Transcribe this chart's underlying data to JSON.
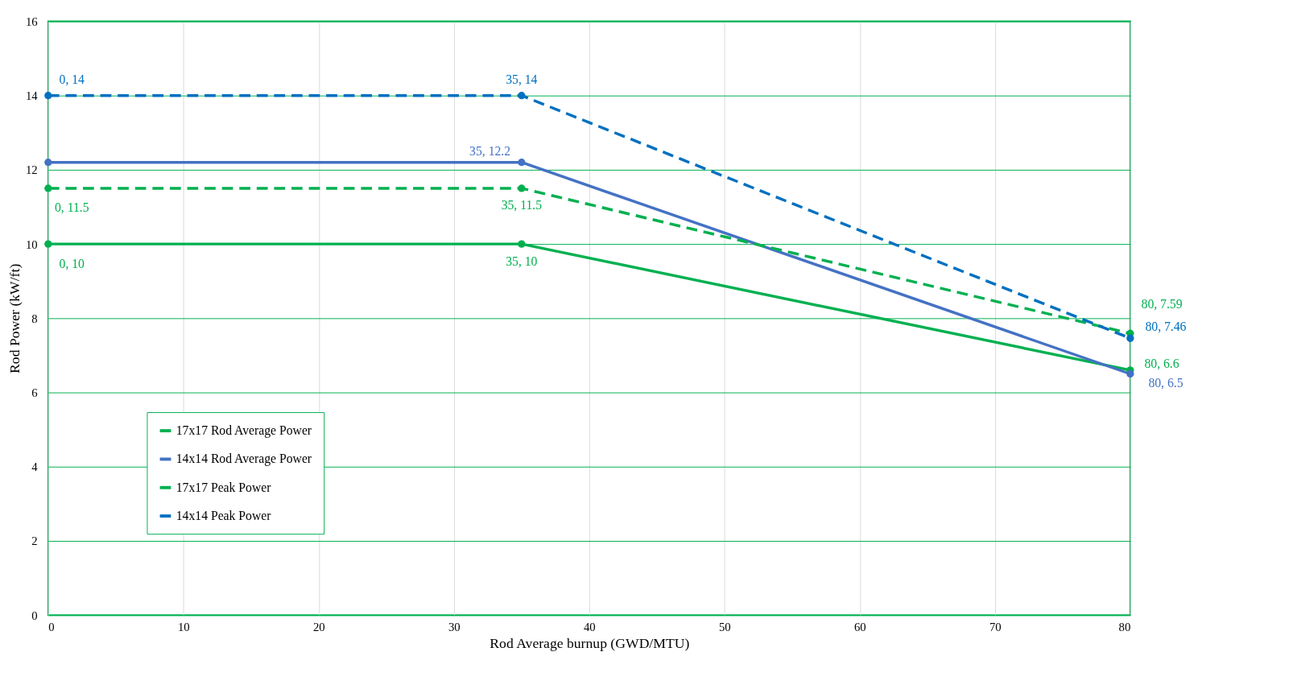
{
  "chart_data": {
    "type": "line",
    "xlabel": "Rod Average burnup (GWD/MTU)",
    "ylabel": "Rod Power (kW/ft)",
    "x": [
      0,
      35,
      80
    ],
    "xlim": [
      0,
      80
    ],
    "xticks": [
      0,
      10,
      20,
      30,
      40,
      50,
      60,
      70,
      80
    ],
    "ylim": [
      0,
      16
    ],
    "yticks": [
      0,
      2,
      4,
      6,
      8,
      10,
      12,
      14,
      16
    ],
    "grid": true,
    "legend": "bottom left",
    "marker": "circle",
    "series": [
      {
        "name": "17x17 Rod Average Power",
        "color": "#00b050",
        "line_style": "solid",
        "values": [
          10,
          10,
          6.6
        ],
        "value_labels": [
          "0, 10",
          "35, 10",
          "80, 6.6"
        ]
      },
      {
        "name": "14x14 Rod Average Power",
        "color": "#4472c4",
        "line_style": "solid",
        "values": [
          12.2,
          12.2,
          6.5
        ],
        "value_labels": [
          null,
          "35, 12.2",
          "80, 6.5"
        ]
      },
      {
        "name": "17x17 Peak Power",
        "color": "#00b050",
        "line_style": "dashed",
        "values": [
          11.5,
          11.5,
          7.59
        ],
        "value_labels": [
          "0, 11.5",
          "35, 11.5",
          "80, 7.59"
        ]
      },
      {
        "name": "14x14 Peak Power",
        "color": "#0070c0",
        "line_style": "dashed",
        "values": [
          14,
          14,
          7.46
        ],
        "value_labels": [
          "0, 14",
          "35, 14",
          "80, 7.46"
        ]
      }
    ]
  }
}
